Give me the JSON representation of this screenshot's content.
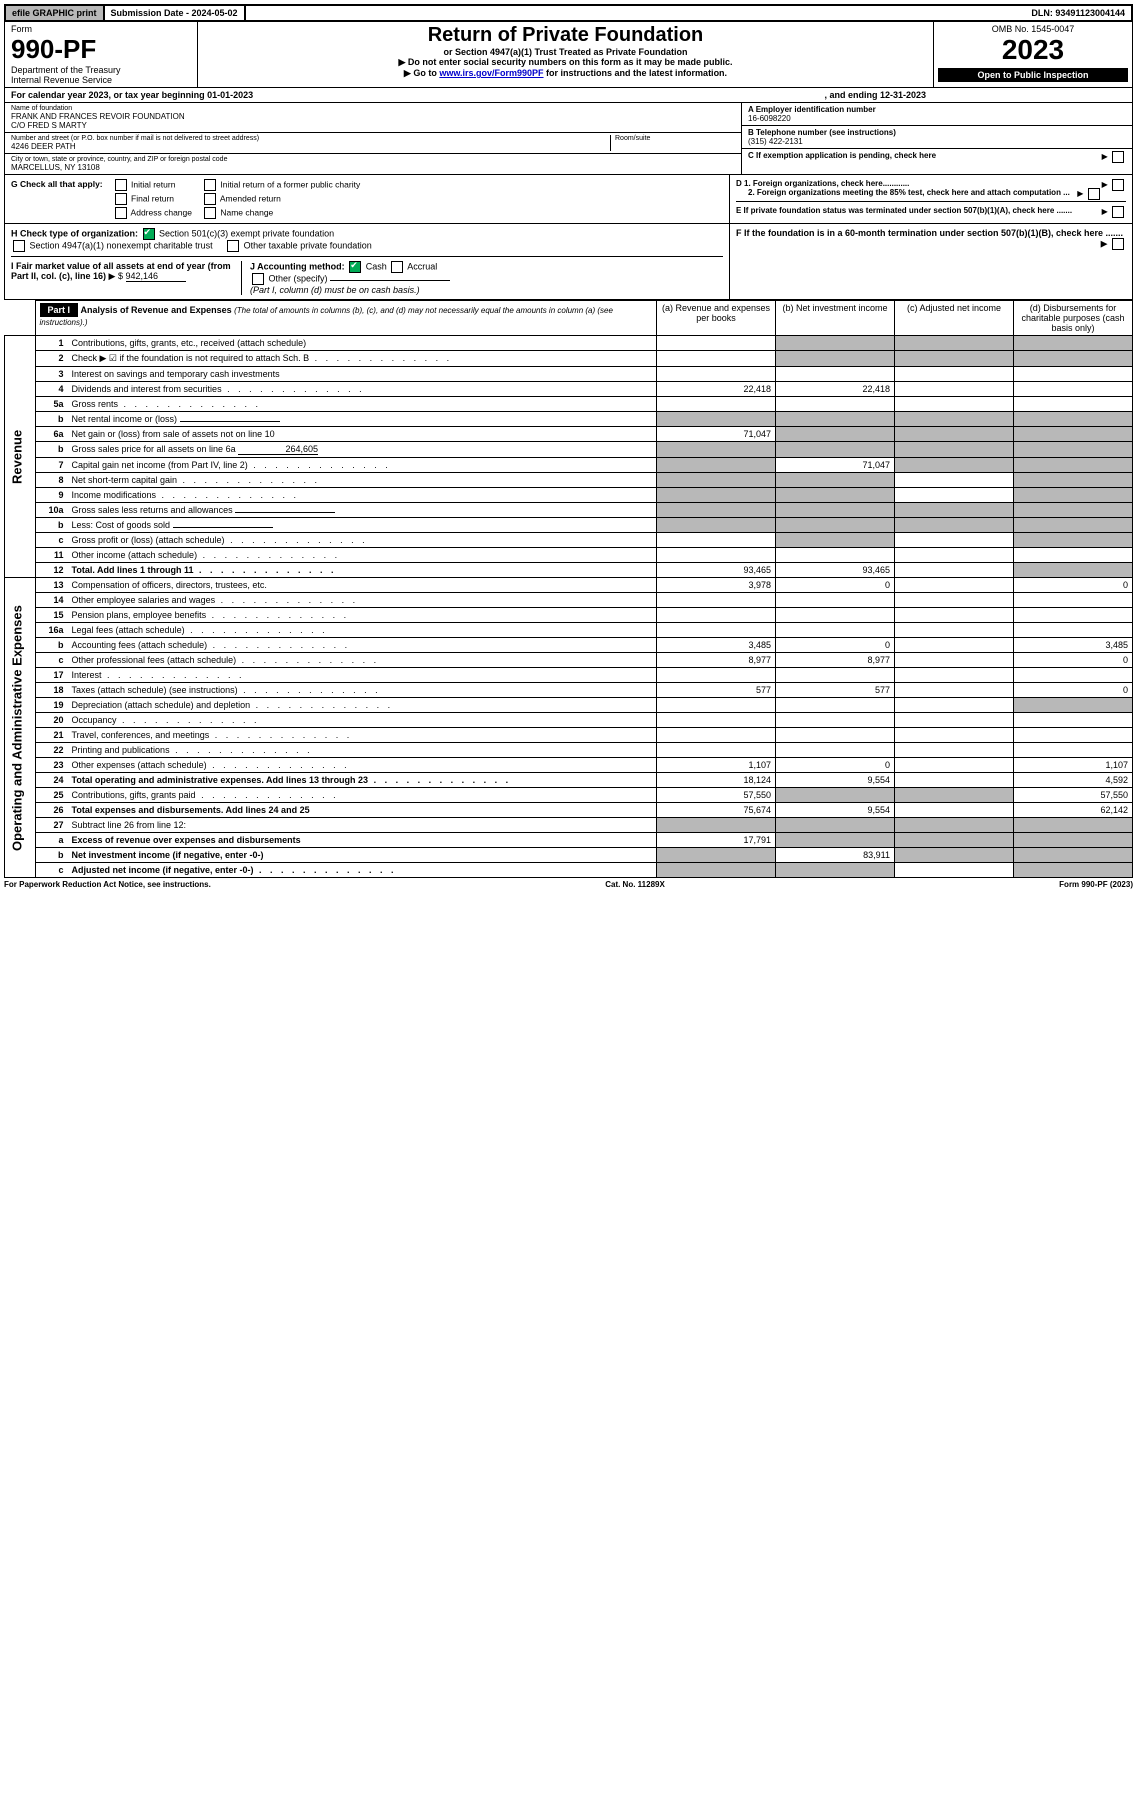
{
  "top": {
    "efile": "efile GRAPHIC print",
    "submission": "Submission Date - 2024-05-02",
    "dln": "DLN: 93491123004144"
  },
  "header": {
    "form_label": "Form",
    "form_number": "990-PF",
    "dept": "Department of the Treasury",
    "irs": "Internal Revenue Service",
    "title": "Return of Private Foundation",
    "subtitle": "or Section 4947(a)(1) Trust Treated as Private Foundation",
    "note1": "▶ Do not enter social security numbers on this form as it may be made public.",
    "note2": "▶ Go to ",
    "note2_link": "www.irs.gov/Form990PF",
    "note2_suffix": " for instructions and the latest information.",
    "omb": "OMB No. 1545-0047",
    "year": "2023",
    "inspection": "Open to Public Inspection"
  },
  "calendar": {
    "text": "For calendar year 2023, or tax year beginning 01-01-2023",
    "ending": ", and ending 12-31-2023"
  },
  "entity": {
    "name_label": "Name of foundation",
    "name": "FRANK AND FRANCES REVOIR FOUNDATION",
    "care_of": "C/O FRED S MARTY",
    "addr_label": "Number and street (or P.O. box number if mail is not delivered to street address)",
    "addr": "4246 DEER PATH",
    "room_label": "Room/suite",
    "city_label": "City or town, state or province, country, and ZIP or foreign postal code",
    "city": "MARCELLUS, NY  13108",
    "ein_label": "A Employer identification number",
    "ein": "16-6098220",
    "tel_label": "B Telephone number (see instructions)",
    "tel": "(315) 422-2131",
    "c_label": "C If exemption application is pending, check here",
    "d1_label": "D 1. Foreign organizations, check here............",
    "d2_label": "2. Foreign organizations meeting the 85% test, check here and attach computation ...",
    "e_label": "E If private foundation status was terminated under section 507(b)(1)(A), check here .......",
    "f_label": "F If the foundation is in a 60-month termination under section 507(b)(1)(B), check here ......."
  },
  "g_block": {
    "g_label": "G Check all that apply:",
    "opts": [
      "Initial return",
      "Final return",
      "Address change",
      "Initial return of a former public charity",
      "Amended return",
      "Name change"
    ],
    "h_label": "H Check type of organization:",
    "h1": "Section 501(c)(3) exempt private foundation",
    "h2": "Section 4947(a)(1) nonexempt charitable trust",
    "h3": "Other taxable private foundation",
    "i_label": "I Fair market value of all assets at end of year (from Part II, col. (c), line 16)",
    "i_prefix": "▶ $",
    "i_value": "942,146",
    "j_label": "J Accounting method:",
    "j_cash": "Cash",
    "j_accrual": "Accrual",
    "j_other": "Other (specify)",
    "j_note": "(Part I, column (d) must be on cash basis.)"
  },
  "part1": {
    "label": "Part I",
    "title": "Analysis of Revenue and Expenses",
    "note": "(The total of amounts in columns (b), (c), and (d) may not necessarily equal the amounts in column (a) (see instructions).)",
    "col_a": "(a) Revenue and expenses per books",
    "col_b": "(b) Net investment income",
    "col_c": "(c) Adjusted net income",
    "col_d": "(d) Disbursements for charitable purposes (cash basis only)"
  },
  "sections": {
    "revenue": "Revenue",
    "expenses": "Operating and Administrative Expenses"
  },
  "rows": [
    {
      "n": "1",
      "d": "Contributions, gifts, grants, etc., received (attach schedule)",
      "a": "",
      "b": "",
      "bg": "g",
      "cg": "g",
      "dg": "g"
    },
    {
      "n": "2",
      "d": "Check ▶ ☑ if the foundation is not required to attach Sch. B",
      "dots": true,
      "bg": "g",
      "cg": "g",
      "dg": "g"
    },
    {
      "n": "3",
      "d": "Interest on savings and temporary cash investments"
    },
    {
      "n": "4",
      "d": "Dividends and interest from securities",
      "dots": true,
      "a": "22,418",
      "b": "22,418"
    },
    {
      "n": "5a",
      "d": "Gross rents",
      "dots": true
    },
    {
      "n": "b",
      "d": "Net rental income or (loss)",
      "underline": true,
      "bg": "g",
      "cg": "g",
      "dg": "g",
      "ag": "g"
    },
    {
      "n": "6a",
      "d": "Net gain or (loss) from sale of assets not on line 10",
      "a": "71,047",
      "bg": "g",
      "cg": "g",
      "dg": "g"
    },
    {
      "n": "b",
      "d": "Gross sales price for all assets on line 6a",
      "inline_val": "264,605",
      "bg": "g",
      "cg": "g",
      "dg": "g",
      "ag": "g"
    },
    {
      "n": "7",
      "d": "Capital gain net income (from Part IV, line 2)",
      "dots": true,
      "ag": "g",
      "b": "71,047",
      "cg": "g",
      "dg": "g"
    },
    {
      "n": "8",
      "d": "Net short-term capital gain",
      "dots": true,
      "ag": "g",
      "bg": "g",
      "dg": "g"
    },
    {
      "n": "9",
      "d": "Income modifications",
      "dots": true,
      "ag": "g",
      "bg": "g",
      "dg": "g"
    },
    {
      "n": "10a",
      "d": "Gross sales less returns and allowances",
      "underline": true,
      "bg": "g",
      "cg": "g",
      "dg": "g",
      "ag": "g"
    },
    {
      "n": "b",
      "d": "Less: Cost of goods sold",
      "dots": true,
      "underline": true,
      "bg": "g",
      "cg": "g",
      "dg": "g",
      "ag": "g"
    },
    {
      "n": "c",
      "d": "Gross profit or (loss) (attach schedule)",
      "dots": true,
      "bg": "g",
      "dg": "g"
    },
    {
      "n": "11",
      "d": "Other income (attach schedule)",
      "dots": true
    },
    {
      "n": "12",
      "d": "Total. Add lines 1 through 11",
      "dots": true,
      "bold": true,
      "a": "93,465",
      "b": "93,465",
      "dg": "g"
    },
    {
      "n": "13",
      "d": "Compensation of officers, directors, trustees, etc.",
      "a": "3,978",
      "b": "0",
      "dval": "0"
    },
    {
      "n": "14",
      "d": "Other employee salaries and wages",
      "dots": true
    },
    {
      "n": "15",
      "d": "Pension plans, employee benefits",
      "dots": true
    },
    {
      "n": "16a",
      "d": "Legal fees (attach schedule)",
      "dots": true
    },
    {
      "n": "b",
      "d": "Accounting fees (attach schedule)",
      "dots": true,
      "a": "3,485",
      "b": "0",
      "dval": "3,485"
    },
    {
      "n": "c",
      "d": "Other professional fees (attach schedule)",
      "dots": true,
      "a": "8,977",
      "b": "8,977",
      "dval": "0"
    },
    {
      "n": "17",
      "d": "Interest",
      "dots": true
    },
    {
      "n": "18",
      "d": "Taxes (attach schedule) (see instructions)",
      "dots": true,
      "a": "577",
      "b": "577",
      "dval": "0"
    },
    {
      "n": "19",
      "d": "Depreciation (attach schedule) and depletion",
      "dots": true,
      "dg": "g"
    },
    {
      "n": "20",
      "d": "Occupancy",
      "dots": true
    },
    {
      "n": "21",
      "d": "Travel, conferences, and meetings",
      "dots": true
    },
    {
      "n": "22",
      "d": "Printing and publications",
      "dots": true
    },
    {
      "n": "23",
      "d": "Other expenses (attach schedule)",
      "dots": true,
      "a": "1,107",
      "b": "0",
      "dval": "1,107"
    },
    {
      "n": "24",
      "d": "Total operating and administrative expenses. Add lines 13 through 23",
      "dots": true,
      "bold": true,
      "a": "18,124",
      "b": "9,554",
      "dval": "4,592"
    },
    {
      "n": "25",
      "d": "Contributions, gifts, grants paid",
      "dots": true,
      "a": "57,550",
      "bg": "g",
      "cg": "g",
      "dval": "57,550"
    },
    {
      "n": "26",
      "d": "Total expenses and disbursements. Add lines 24 and 25",
      "bold": true,
      "a": "75,674",
      "b": "9,554",
      "dval": "62,142"
    },
    {
      "n": "27",
      "d": "Subtract line 26 from line 12:",
      "ag": "g",
      "bg": "g",
      "cg": "g",
      "dg": "g"
    },
    {
      "n": "a",
      "d": "Excess of revenue over expenses and disbursements",
      "bold": true,
      "a": "17,791",
      "bg": "g",
      "cg": "g",
      "dg": "g"
    },
    {
      "n": "b",
      "d": "Net investment income (if negative, enter -0-)",
      "bold": true,
      "ag": "g",
      "b": "83,911",
      "cg": "g",
      "dg": "g"
    },
    {
      "n": "c",
      "d": "Adjusted net income (if negative, enter -0-)",
      "dots": true,
      "bold": true,
      "ag": "g",
      "bg": "g",
      "dg": "g"
    }
  ],
  "footer": {
    "left": "For Paperwork Reduction Act Notice, see instructions.",
    "center": "Cat. No. 11289X",
    "right": "Form 990-PF (2023)"
  }
}
